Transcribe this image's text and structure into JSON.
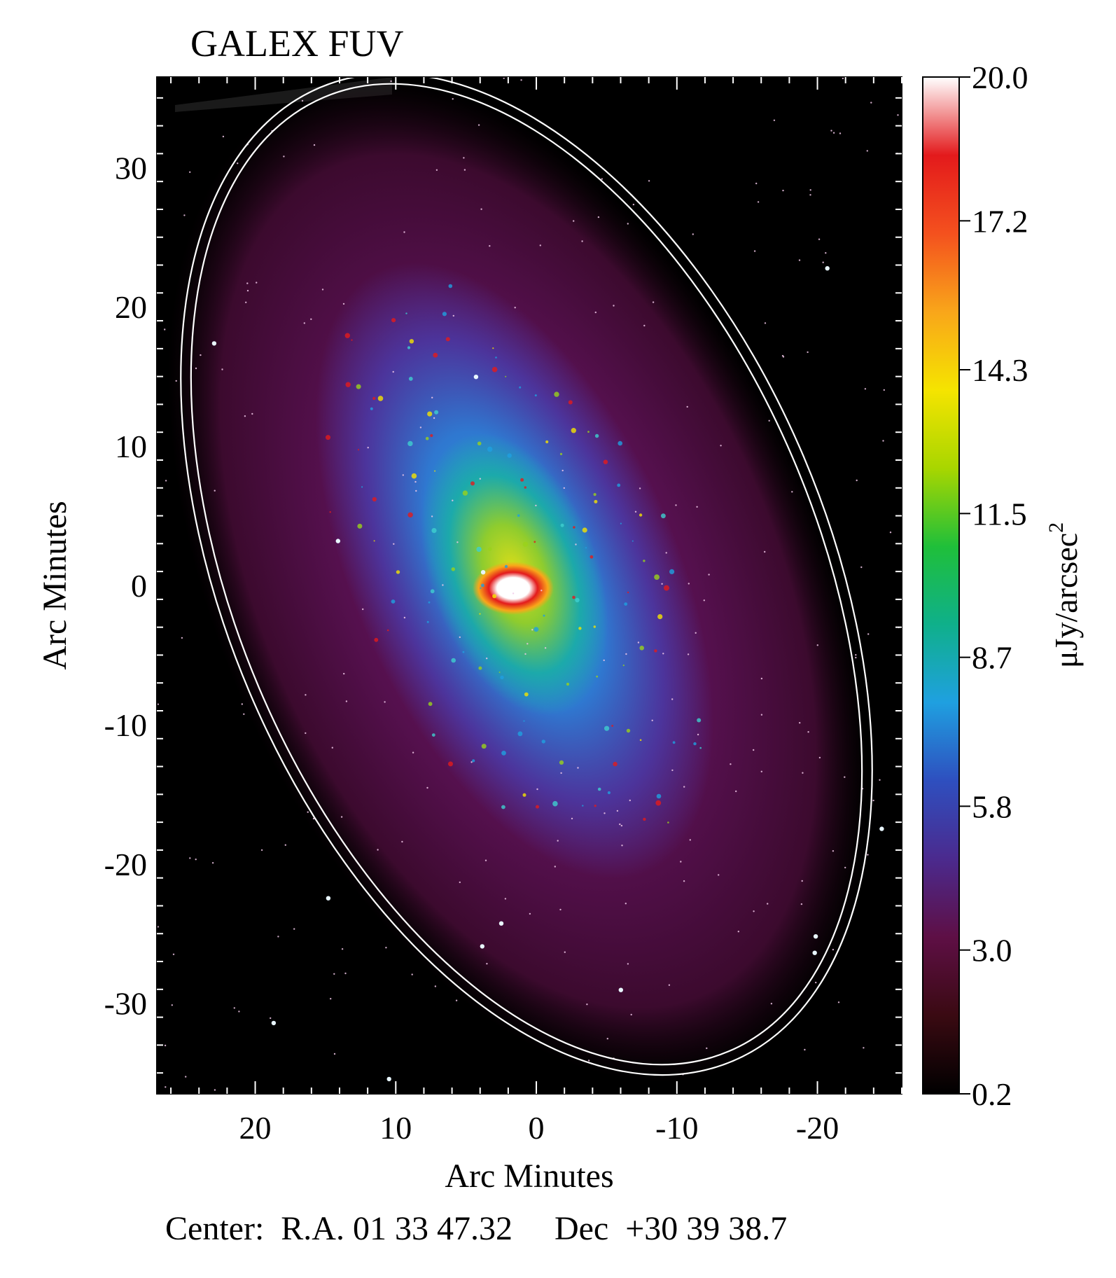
{
  "title": "GALEX FUV",
  "x_axis": {
    "label": "Arc Minutes",
    "ticks": [
      "20",
      "10",
      "0",
      "-10",
      "-20"
    ],
    "range": [
      27,
      -26
    ]
  },
  "y_axis": {
    "label": "Arc Minutes",
    "ticks": [
      "30",
      "20",
      "10",
      "0",
      "-10",
      "-20",
      "-30"
    ],
    "range": [
      -36.5,
      36.5
    ]
  },
  "colorbar": {
    "label": "μJy/arcsec",
    "label_superscript": "2",
    "ticks": [
      "20.0",
      "17.2",
      "14.3",
      "11.5",
      "8.7",
      "5.8",
      "3.0",
      "0.2"
    ],
    "range": [
      0.2,
      20.0
    ],
    "colormap": [
      "#000000",
      "#3a0a12",
      "#5e0f45",
      "#4b2a8e",
      "#2e4fbf",
      "#1fa0e0",
      "#0fb08a",
      "#1fbf3a",
      "#a8d600",
      "#f5e400",
      "#f9a61a",
      "#f4511e",
      "#e31a1c",
      "#ffffff"
    ]
  },
  "footer": "Center:  R.A. 01 33 47.32     Dec  +30 39 38.7",
  "image": {
    "background_color": "#000000",
    "disk_color": "#4a0a3a",
    "overlay_ellipse_color": "#ffffff"
  }
}
